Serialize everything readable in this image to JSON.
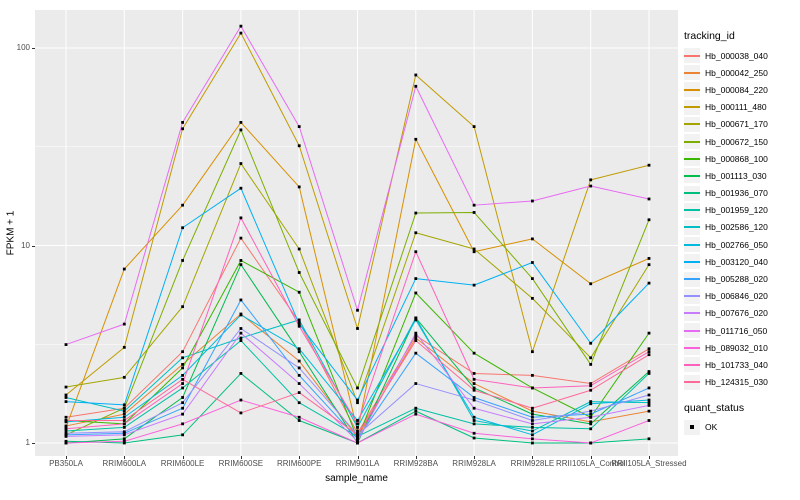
{
  "figure": {
    "background": "#FFFFFF",
    "panel_background": "#EBEBEB",
    "grid_color": "#FFFFFF",
    "tick_label_color": "#4D4D4D",
    "point_color": "#000000"
  },
  "chart_data": {
    "type": "line",
    "title": "",
    "xlabel": "sample_name",
    "ylabel": "FPKM + 1",
    "y_scale": "log10",
    "y_ticks": [
      1,
      10,
      100
    ],
    "y_tick_labels": [
      "1",
      "10",
      "100"
    ],
    "y_minor_ticks": [
      3.1623,
      31.623
    ],
    "ylim": [
      0.87,
      155
    ],
    "grid": true,
    "categories": [
      "PB350LA",
      "RRIM600LA",
      "RRIM600LE",
      "RRIM600SE",
      "RRIM600PE",
      "RRIM901LA",
      "RRIM928BA",
      "RRIM928LA",
      "RRIM928LE",
      "RRII105LA_Control",
      "RRII105LA_Stressed"
    ],
    "legend": {
      "title": "tracking_id",
      "position": "right"
    },
    "legend2": {
      "title": "quant_status",
      "items": [
        {
          "label": "OK",
          "marker": "black-square"
        }
      ]
    },
    "series": [
      {
        "name": "Hb_000038_040",
        "color": "#F8766D",
        "values": [
          1.35,
          1.5,
          2.9,
          10.9,
          4.1,
          1.12,
          3.5,
          2.25,
          2.2,
          2.0,
          3.0
        ]
      },
      {
        "name": "Hb_000042_250",
        "color": "#EB8335",
        "values": [
          1.22,
          1.4,
          2.5,
          4.5,
          2.6,
          1.07,
          3.4,
          2.0,
          1.45,
          1.28,
          1.45
        ]
      },
      {
        "name": "Hb_000084_220",
        "color": "#D89000",
        "values": [
          1.2,
          7.6,
          16,
          42,
          19.8,
          1.15,
          34.5,
          9.3,
          10.8,
          6.4,
          8.6
        ]
      },
      {
        "name": "Hb_000111_480",
        "color": "#C09B00",
        "values": [
          1.75,
          3.05,
          39,
          119,
          32,
          3.8,
          73,
          40,
          2.9,
          21.5,
          25.5
        ]
      },
      {
        "name": "Hb_000671_170",
        "color": "#A3A500",
        "values": [
          1.92,
          2.15,
          4.9,
          26,
          9.6,
          1.6,
          11.6,
          9.6,
          5.4,
          2.7,
          8.0
        ]
      },
      {
        "name": "Hb_000672_150",
        "color": "#7CAE00",
        "values": [
          1.1,
          1.5,
          8.4,
          38.5,
          7.3,
          1.9,
          14.6,
          14.7,
          6.8,
          2.5,
          13.5
        ]
      },
      {
        "name": "Hb_000868_100",
        "color": "#39B600",
        "values": [
          1.3,
          1.25,
          2.4,
          8.4,
          5.8,
          1.05,
          5.75,
          2.85,
          1.9,
          1.35,
          3.6
        ]
      },
      {
        "name": "Hb_001113_030",
        "color": "#00BB4E",
        "values": [
          1.0,
          1.05,
          1.7,
          8.0,
          2.9,
          1.0,
          4.3,
          1.9,
          1.4,
          1.25,
          2.3
        ]
      },
      {
        "name": "Hb_001936_070",
        "color": "#00BF7D",
        "values": [
          1.02,
          1.0,
          1.1,
          2.25,
          1.3,
          1.0,
          1.45,
          1.06,
          1.0,
          1.0,
          1.05
        ]
      },
      {
        "name": "Hb_001959_120",
        "color": "#00C1A3",
        "values": [
          1.15,
          1.2,
          1.9,
          3.3,
          1.6,
          1.08,
          1.5,
          1.25,
          1.2,
          1.18,
          2.25
        ]
      },
      {
        "name": "Hb_002586_120",
        "color": "#00BFC4",
        "values": [
          1.7,
          1.45,
          2.7,
          3.4,
          4.2,
          1.2,
          4.3,
          1.3,
          1.15,
          1.62,
          1.6
        ]
      },
      {
        "name": "Hb_002766_050",
        "color": "#00BAE0",
        "values": [
          1.28,
          1.35,
          2.2,
          4.45,
          3.0,
          1.3,
          4.2,
          1.35,
          1.1,
          1.58,
          1.65
        ]
      },
      {
        "name": "Hb_003120_040",
        "color": "#00B0F6",
        "values": [
          1.62,
          1.56,
          12.3,
          19.5,
          4.0,
          1.65,
          6.8,
          6.3,
          8.2,
          3.2,
          6.45
        ]
      },
      {
        "name": "Hb_005288_020",
        "color": "#35A2FF",
        "values": [
          1.1,
          1.12,
          1.5,
          5.3,
          2.2,
          1.05,
          2.85,
          1.7,
          1.35,
          1.4,
          1.9
        ]
      },
      {
        "name": "Hb_006846_020",
        "color": "#9590FF",
        "values": [
          1.12,
          1.14,
          1.6,
          3.8,
          2.4,
          1.1,
          2.0,
          1.65,
          1.3,
          1.45,
          1.75
        ]
      },
      {
        "name": "Hb_007676_020",
        "color": "#C77CFF",
        "values": [
          1.08,
          1.1,
          1.4,
          3.6,
          2.0,
          1.02,
          3.6,
          1.5,
          1.25,
          1.35,
          1.55
        ]
      },
      {
        "name": "Hb_011716_050",
        "color": "#E76BF3",
        "values": [
          3.15,
          4.0,
          42,
          129,
          40,
          4.7,
          64,
          16,
          16.8,
          20,
          17.2
        ]
      },
      {
        "name": "Hb_089032_010",
        "color": "#FA62DB",
        "values": [
          1.0,
          1.02,
          1.25,
          1.65,
          1.35,
          1.0,
          1.4,
          1.12,
          1.05,
          1.0,
          1.3
        ]
      },
      {
        "name": "Hb_101733_040",
        "color": "#FF62BC",
        "values": [
          1.18,
          1.25,
          2.0,
          13.8,
          3.9,
          1.25,
          9.3,
          2.1,
          1.9,
          1.95,
          2.9
        ]
      },
      {
        "name": "Hb_124315_030",
        "color": "#FF6A98",
        "values": [
          1.3,
          1.3,
          2.1,
          1.42,
          1.8,
          1.1,
          3.3,
          1.85,
          1.5,
          1.85,
          2.8
        ]
      }
    ]
  }
}
